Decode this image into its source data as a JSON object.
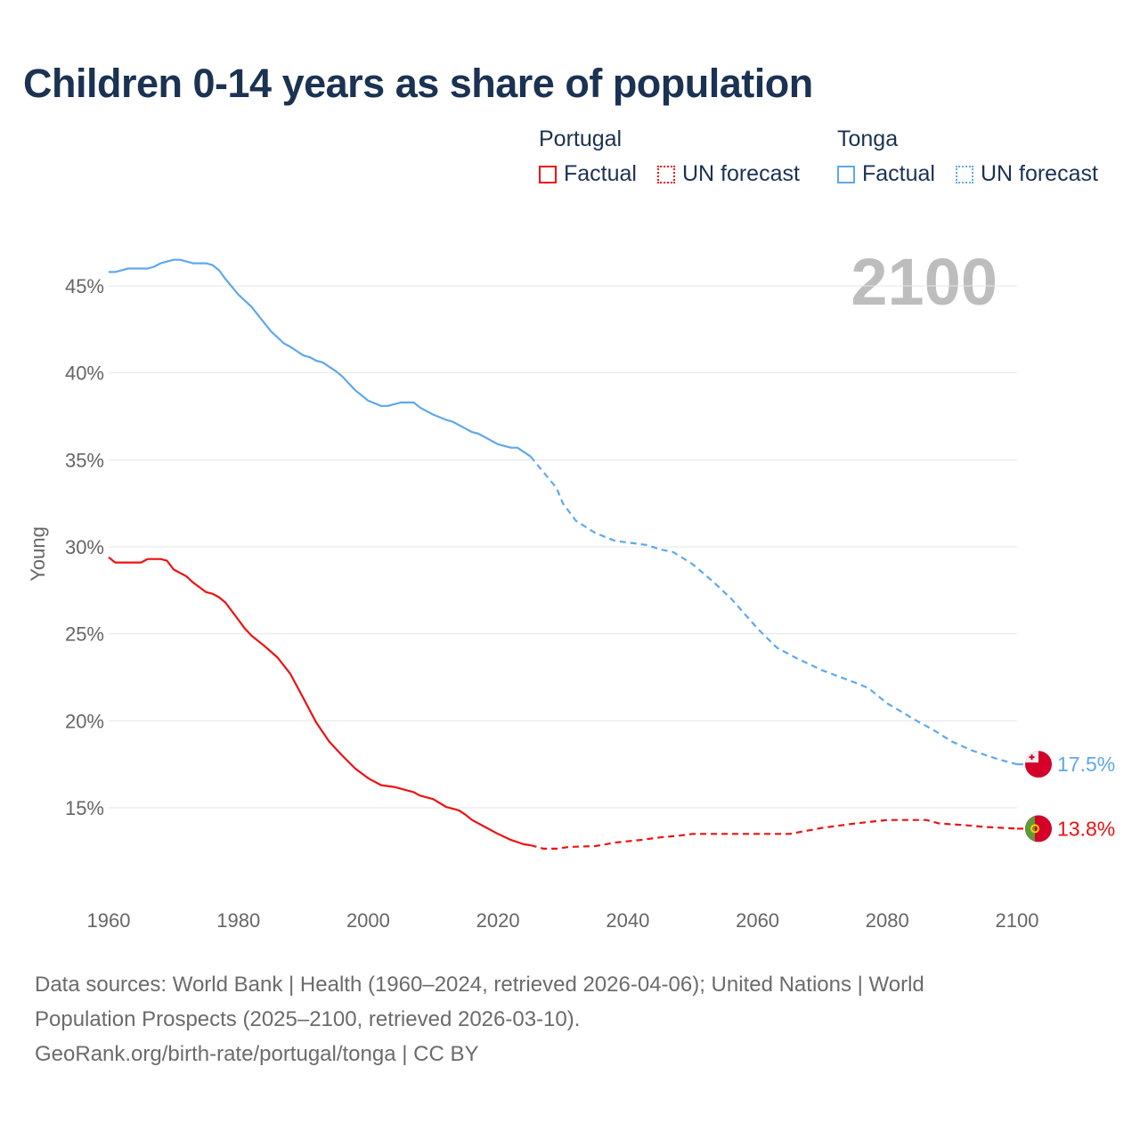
{
  "chart_data": {
    "type": "line",
    "title": "Children 0-14 years as share of population",
    "ylabel": "Young",
    "xlabel": "",
    "xlim": [
      1960,
      2100
    ],
    "ylim": [
      10,
      47
    ],
    "x_ticks": [
      "1960",
      "1980",
      "2000",
      "2020",
      "2040",
      "2060",
      "2080",
      "2100"
    ],
    "y_ticks": [
      "15%",
      "20%",
      "25%",
      "30%",
      "35%",
      "40%",
      "45%"
    ],
    "grid": true,
    "year_label": "2100",
    "legend": {
      "placement": "top-right",
      "groups": [
        {
          "name": "Portugal",
          "items": [
            "Factual",
            "UN forecast"
          ]
        },
        {
          "name": "Tonga",
          "items": [
            "Factual",
            "UN forecast"
          ]
        }
      ]
    },
    "series": [
      {
        "name": "Tonga",
        "color": "#5fa8ec",
        "end_label": "17.5%",
        "flag": "tonga-flag",
        "factual": [
          [
            1960,
            45.8
          ],
          [
            1961,
            45.8
          ],
          [
            1963,
            46.0
          ],
          [
            1966,
            46.0
          ],
          [
            1967,
            46.1
          ],
          [
            1968,
            46.3
          ],
          [
            1970,
            46.5
          ],
          [
            1971,
            46.5
          ],
          [
            1973,
            46.3
          ],
          [
            1975,
            46.3
          ],
          [
            1976,
            46.2
          ],
          [
            1977,
            45.9
          ],
          [
            1978,
            45.4
          ],
          [
            1980,
            44.5
          ],
          [
            1982,
            43.8
          ],
          [
            1985,
            42.4
          ],
          [
            1987,
            41.7
          ],
          [
            1988,
            41.5
          ],
          [
            1990,
            41.0
          ],
          [
            1991,
            40.9
          ],
          [
            1992,
            40.7
          ],
          [
            1993,
            40.6
          ],
          [
            1995,
            40.1
          ],
          [
            1996,
            39.8
          ],
          [
            1998,
            39.0
          ],
          [
            2000,
            38.4
          ],
          [
            2002,
            38.1
          ],
          [
            2003,
            38.1
          ],
          [
            2005,
            38.3
          ],
          [
            2007,
            38.3
          ],
          [
            2008,
            38.0
          ],
          [
            2010,
            37.6
          ],
          [
            2012,
            37.3
          ],
          [
            2013,
            37.2
          ],
          [
            2015,
            36.8
          ],
          [
            2016,
            36.6
          ],
          [
            2017,
            36.5
          ],
          [
            2020,
            35.9
          ],
          [
            2022,
            35.7
          ],
          [
            2023,
            35.7
          ],
          [
            2025,
            35.2
          ]
        ],
        "forecast": [
          [
            2025,
            35.2
          ],
          [
            2027,
            34.3
          ],
          [
            2029,
            33.4
          ],
          [
            2030,
            32.5
          ],
          [
            2032,
            31.5
          ],
          [
            2035,
            30.8
          ],
          [
            2038,
            30.35
          ],
          [
            2040,
            30.25
          ],
          [
            2043,
            30.1
          ],
          [
            2045,
            29.85
          ],
          [
            2047,
            29.7
          ],
          [
            2050,
            29.0
          ],
          [
            2053,
            28.05
          ],
          [
            2056,
            27.0
          ],
          [
            2060,
            25.3
          ],
          [
            2063,
            24.2
          ],
          [
            2066,
            23.6
          ],
          [
            2070,
            22.9
          ],
          [
            2075,
            22.2
          ],
          [
            2077,
            21.9
          ],
          [
            2080,
            21.0
          ],
          [
            2085,
            19.9
          ],
          [
            2087,
            19.5
          ],
          [
            2090,
            18.8
          ],
          [
            2093,
            18.3
          ],
          [
            2097,
            17.8
          ],
          [
            2099,
            17.6
          ],
          [
            2100,
            17.5
          ]
        ]
      },
      {
        "name": "Portugal",
        "color": "#ee1111",
        "end_label": "13.8%",
        "flag": "portugal-flag",
        "factual": [
          [
            1960,
            29.4
          ],
          [
            1961,
            29.1
          ],
          [
            1965,
            29.1
          ],
          [
            1966,
            29.3
          ],
          [
            1968,
            29.3
          ],
          [
            1969,
            29.2
          ],
          [
            1970,
            28.7
          ],
          [
            1972,
            28.3
          ],
          [
            1973,
            27.95
          ],
          [
            1975,
            27.4
          ],
          [
            1976,
            27.3
          ],
          [
            1977,
            27.1
          ],
          [
            1978,
            26.8
          ],
          [
            1980,
            25.8
          ],
          [
            1981,
            25.3
          ],
          [
            1982,
            24.9
          ],
          [
            1984,
            24.3
          ],
          [
            1986,
            23.65
          ],
          [
            1988,
            22.7
          ],
          [
            1990,
            21.3
          ],
          [
            1992,
            19.9
          ],
          [
            1994,
            18.8
          ],
          [
            1996,
            18.0
          ],
          [
            1998,
            17.25
          ],
          [
            2000,
            16.7
          ],
          [
            2002,
            16.3
          ],
          [
            2004,
            16.2
          ],
          [
            2007,
            15.9
          ],
          [
            2008,
            15.7
          ],
          [
            2010,
            15.5
          ],
          [
            2012,
            15.05
          ],
          [
            2014,
            14.85
          ],
          [
            2015,
            14.6
          ],
          [
            2016,
            14.3
          ],
          [
            2018,
            13.9
          ],
          [
            2020,
            13.5
          ],
          [
            2022,
            13.15
          ],
          [
            2024,
            12.9
          ],
          [
            2025,
            12.85
          ]
        ],
        "forecast": [
          [
            2025,
            12.85
          ],
          [
            2027,
            12.65
          ],
          [
            2029,
            12.65
          ],
          [
            2031,
            12.75
          ],
          [
            2035,
            12.8
          ],
          [
            2038,
            13.0
          ],
          [
            2042,
            13.15
          ],
          [
            2045,
            13.3
          ],
          [
            2048,
            13.4
          ],
          [
            2050,
            13.5
          ],
          [
            2065,
            13.5
          ],
          [
            2070,
            13.85
          ],
          [
            2075,
            14.1
          ],
          [
            2080,
            14.3
          ],
          [
            2086,
            14.3
          ],
          [
            2088,
            14.1
          ],
          [
            2092,
            14.0
          ],
          [
            2095,
            13.9
          ],
          [
            2100,
            13.8
          ]
        ]
      }
    ]
  },
  "footer": {
    "line1": "Data sources: World Bank | Health (1960–2024, retrieved 2026-04-06); United Nations | World",
    "line2": "Population Prospects (2025–2100, retrieved 2026-03-10).",
    "line3": "GeoRank.org/birth-rate/portugal/tonga | CC BY"
  }
}
